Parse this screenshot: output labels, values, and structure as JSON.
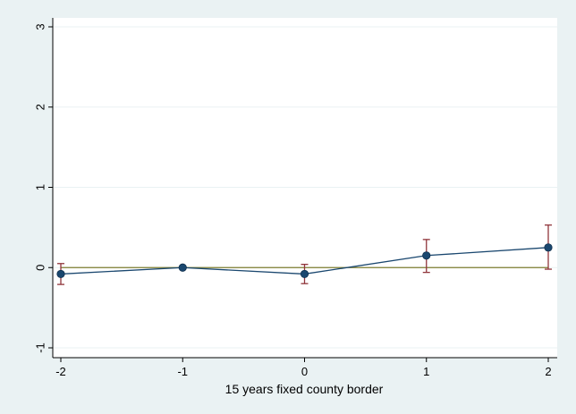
{
  "chart_data": {
    "type": "line",
    "title": "",
    "xlabel": "15 years fixed county border",
    "ylabel": "",
    "x": [
      -2,
      -1,
      0,
      1,
      2
    ],
    "x_ticks": [
      -2,
      -1,
      0,
      1,
      2
    ],
    "y_ticks": [
      -1,
      0,
      1,
      2,
      3
    ],
    "xlim": [
      -2,
      2
    ],
    "ylim": [
      -1,
      3
    ],
    "grid": true,
    "reference_line": {
      "y": 0
    },
    "series": [
      {
        "values": [
          -0.08,
          0.0,
          -0.08,
          0.15,
          0.25
        ],
        "ci_low": [
          -0.21,
          0.0,
          -0.2,
          -0.06,
          -0.02
        ],
        "ci_high": [
          0.05,
          0.0,
          0.04,
          0.35,
          0.53
        ]
      }
    ],
    "colors": {
      "background": "#eaf2f3",
      "plot_area": "#ffffff",
      "line": "#1a476f",
      "marker": "#1a476f",
      "error_bars": "#90353b",
      "reference_line": "#7d7c2f",
      "grid": "#eaf2f3",
      "axis": "#000000"
    }
  }
}
